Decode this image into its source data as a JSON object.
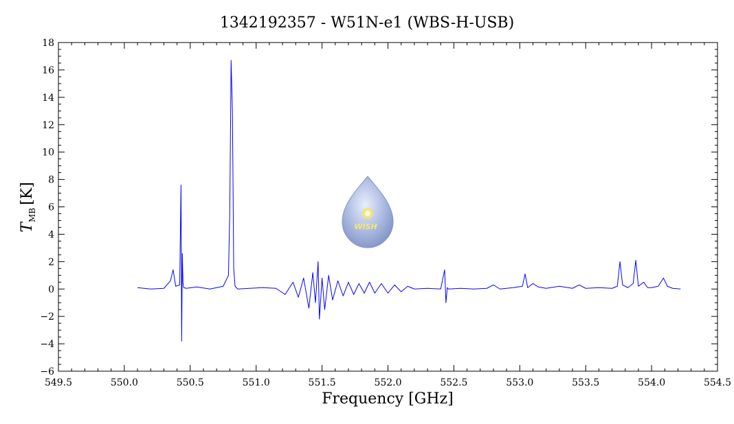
{
  "chart_data": {
    "type": "line",
    "title": "1342192357 - W51N-e1 (WBS-H-USB)",
    "xlabel": "Frequency [GHz]",
    "ylabel_main": "T",
    "ylabel_sub": "MB",
    "ylabel_unit": "[K]",
    "xlim": [
      549.5,
      554.5
    ],
    "ylim": [
      -6,
      18
    ],
    "x_ticks": [
      549.5,
      550.0,
      550.5,
      551.0,
      551.5,
      552.0,
      552.5,
      553.0,
      553.5,
      554.0,
      554.5
    ],
    "x_tick_labels": [
      "549.5",
      "550.0",
      "550.5",
      "551.0",
      "551.5",
      "552.0",
      "552.5",
      "553.0",
      "553.5",
      "554.0",
      "554.5"
    ],
    "y_ticks": [
      -6,
      -4,
      -2,
      0,
      2,
      4,
      6,
      8,
      10,
      12,
      14,
      16,
      18
    ],
    "y_tick_labels": [
      "−6",
      "−4",
      "−2",
      "0",
      "2",
      "4",
      "6",
      "8",
      "10",
      "12",
      "14",
      "16",
      "18"
    ],
    "series_color": "#0000ff",
    "series": [
      {
        "x": [
          550.1,
          550.2,
          550.3,
          550.35,
          550.37,
          550.39,
          550.42,
          550.43,
          550.435,
          550.44,
          550.445,
          550.45,
          550.47,
          550.55,
          550.65,
          550.75,
          550.79,
          550.8,
          550.81,
          550.82,
          550.83,
          550.84,
          550.86,
          550.95,
          551.05,
          551.15,
          551.22,
          551.28,
          551.32,
          551.36,
          551.4,
          551.43,
          551.45,
          551.47,
          551.48,
          551.5,
          551.52,
          551.55,
          551.58,
          551.62,
          551.66,
          551.7,
          551.74,
          551.78,
          551.82,
          551.86,
          551.9,
          551.95,
          552.0,
          552.05,
          552.1,
          552.15,
          552.2,
          552.3,
          552.4,
          552.43,
          552.44,
          552.45,
          552.46,
          552.55,
          552.65,
          552.75,
          552.8,
          552.85,
          552.95,
          553.02,
          553.04,
          553.06,
          553.1,
          553.14,
          553.2,
          553.3,
          553.4,
          553.45,
          553.5,
          553.6,
          553.7,
          553.74,
          553.76,
          553.78,
          553.82,
          553.86,
          553.88,
          553.9,
          553.94,
          553.97,
          554.0,
          554.05,
          554.09,
          554.12,
          554.16,
          554.22
        ],
        "y": [
          0.1,
          0.0,
          0.05,
          0.6,
          1.4,
          0.2,
          0.3,
          7.6,
          -3.8,
          2.6,
          0.5,
          0.1,
          0.05,
          0.15,
          0.0,
          0.2,
          1.0,
          5.6,
          16.7,
          13.0,
          1.5,
          0.2,
          0.0,
          0.05,
          0.1,
          0.05,
          -0.4,
          0.5,
          -0.6,
          0.8,
          -1.4,
          1.2,
          -1.0,
          2.0,
          -2.2,
          0.8,
          -1.5,
          1.0,
          -0.8,
          0.6,
          -0.5,
          0.5,
          -0.4,
          0.4,
          -0.3,
          0.5,
          -0.3,
          0.4,
          -0.3,
          0.3,
          -0.2,
          0.2,
          0.0,
          0.05,
          0.0,
          1.4,
          -1.0,
          0.1,
          0.0,
          0.05,
          0.0,
          0.05,
          0.3,
          0.0,
          0.1,
          0.2,
          1.1,
          0.1,
          0.4,
          0.15,
          0.05,
          0.2,
          0.05,
          0.3,
          0.05,
          0.1,
          0.05,
          0.2,
          2.0,
          0.3,
          0.1,
          0.4,
          2.1,
          0.2,
          0.5,
          0.1,
          0.1,
          0.2,
          0.8,
          0.2,
          0.05,
          0.0
        ]
      }
    ],
    "grid": false
  },
  "logo": {
    "icon": "wish-droplet-icon",
    "label": "WISH",
    "colors": {
      "drop": "#b6c3e3",
      "star": "#f3e76b"
    }
  }
}
